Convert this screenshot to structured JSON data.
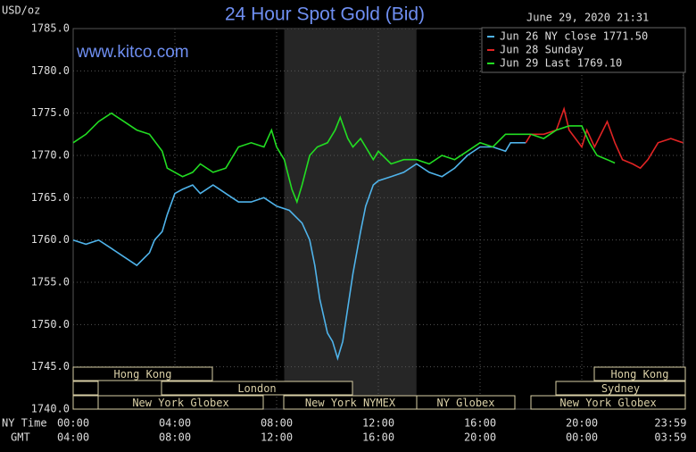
{
  "chart_data": {
    "type": "line",
    "title": "24 Hour Spot Gold (Bid)",
    "subtitle": "June 29, 2020 21:31",
    "y_label": "USD/oz",
    "annotation": "www.kitco.com",
    "x_row_labels": [
      "NY Time",
      "GMT"
    ],
    "xlim": [
      0,
      24
    ],
    "xticks": [
      {
        "value": 0,
        "label": "00:00"
      },
      {
        "value": 4,
        "label": "04:00"
      },
      {
        "value": 8,
        "label": "08:00"
      },
      {
        "value": 12,
        "label": "12:00"
      },
      {
        "value": 16,
        "label": "16:00"
      },
      {
        "value": 20,
        "label": "20:00"
      },
      {
        "value": 23.98,
        "label": "23:59"
      }
    ],
    "gmt_labels": [
      "04:00",
      "08:00",
      "12:00",
      "16:00",
      "20:00",
      "00:00",
      "03:59"
    ],
    "ylim": [
      1740,
      1785
    ],
    "yticks": [
      {
        "value": 1740,
        "label": "1740.0"
      },
      {
        "value": 1745,
        "label": "1745.0"
      },
      {
        "value": 1750,
        "label": "1750.0"
      },
      {
        "value": 1755,
        "label": "1755.0"
      },
      {
        "value": 1760,
        "label": "1760.0"
      },
      {
        "value": 1765,
        "label": "1765.0"
      },
      {
        "value": 1770,
        "label": "1770.0"
      },
      {
        "value": 1775,
        "label": "1775.0"
      },
      {
        "value": 1780,
        "label": "1780.0"
      },
      {
        "value": 1785,
        "label": "1785.0"
      }
    ],
    "grid": true,
    "session_labels": [
      "Hong Kong",
      "London",
      "New York Globex",
      "New York NYMEX",
      "NY Globex",
      "Hong Kong",
      "Sydney",
      "New York Globex"
    ],
    "series": [
      {
        "name": "Jun 26 NY close 1771.50",
        "color": "#4fb3ea",
        "x": [
          0,
          0.5,
          1,
          1.5,
          2,
          2.5,
          3,
          3.2,
          3.5,
          3.7,
          4,
          4.3,
          4.7,
          5,
          5.5,
          6,
          6.5,
          7,
          7.5,
          8,
          8.5,
          9,
          9.3,
          9.5,
          9.7,
          10,
          10.2,
          10.4,
          10.6,
          10.8,
          11,
          11.3,
          11.5,
          11.8,
          12,
          12.5,
          13,
          13.5,
          14,
          14.5,
          15,
          15.5,
          16,
          16.5,
          17,
          17.2,
          17.8
        ],
        "values": [
          1760,
          1759.5,
          1760,
          1759,
          1758,
          1757,
          1758.5,
          1760,
          1761,
          1763,
          1765.5,
          1766,
          1766.5,
          1765.5,
          1766.5,
          1765.5,
          1764.5,
          1764.5,
          1765,
          1764,
          1763.5,
          1762,
          1760,
          1757,
          1753,
          1749,
          1748,
          1746,
          1748,
          1752,
          1756,
          1761,
          1764,
          1766.5,
          1767,
          1767.5,
          1768,
          1769,
          1768,
          1767.5,
          1768.5,
          1770,
          1771,
          1771,
          1770.5,
          1771.5,
          1771.5
        ]
      },
      {
        "name": "Jun 28 Sunday",
        "color": "#e02424",
        "x": [
          17.8,
          18,
          18.5,
          19,
          19.3,
          19.5,
          20,
          20.2,
          20.5,
          21,
          21.3,
          21.6,
          22,
          22.3,
          22.6,
          23,
          23.5,
          23.98
        ],
        "values": [
          1771.5,
          1772.5,
          1772.5,
          1773,
          1775.5,
          1773,
          1771,
          1773,
          1771,
          1774,
          1771.5,
          1769.5,
          1769,
          1768.5,
          1769.5,
          1771.5,
          1772,
          1771.5
        ]
      },
      {
        "name": "Jun 29 Last 1769.10",
        "color": "#22dd22",
        "x": [
          0,
          0.5,
          1,
          1.5,
          2,
          2.5,
          3,
          3.5,
          3.7,
          4,
          4.3,
          4.7,
          5,
          5.5,
          6,
          6.5,
          7,
          7.5,
          7.8,
          8,
          8.3,
          8.6,
          8.8,
          9,
          9.3,
          9.6,
          10,
          10.3,
          10.5,
          10.8,
          11,
          11.3,
          11.5,
          11.8,
          12,
          12.5,
          13,
          13.5,
          14,
          14.5,
          15,
          15.5,
          16,
          16.5,
          17,
          17.5,
          18,
          18.5,
          19,
          19.5,
          20,
          20.3,
          20.6,
          21,
          21.3
        ],
        "values": [
          1771.5,
          1772.5,
          1774,
          1775,
          1774,
          1773,
          1772.5,
          1770.5,
          1768.5,
          1768,
          1767.5,
          1768,
          1769,
          1768,
          1768.5,
          1771,
          1771.5,
          1771,
          1773,
          1771,
          1769.5,
          1766,
          1764.5,
          1766.5,
          1770,
          1771,
          1771.5,
          1773,
          1774.5,
          1772,
          1771,
          1772,
          1771,
          1769.5,
          1770.5,
          1769,
          1769.5,
          1769.5,
          1769,
          1770,
          1769.5,
          1770.5,
          1771.5,
          1771,
          1772.5,
          1772.5,
          1772.5,
          1772,
          1773,
          1773.5,
          1773.5,
          1771.5,
          1770,
          1769.5,
          1769.1
        ]
      }
    ]
  }
}
